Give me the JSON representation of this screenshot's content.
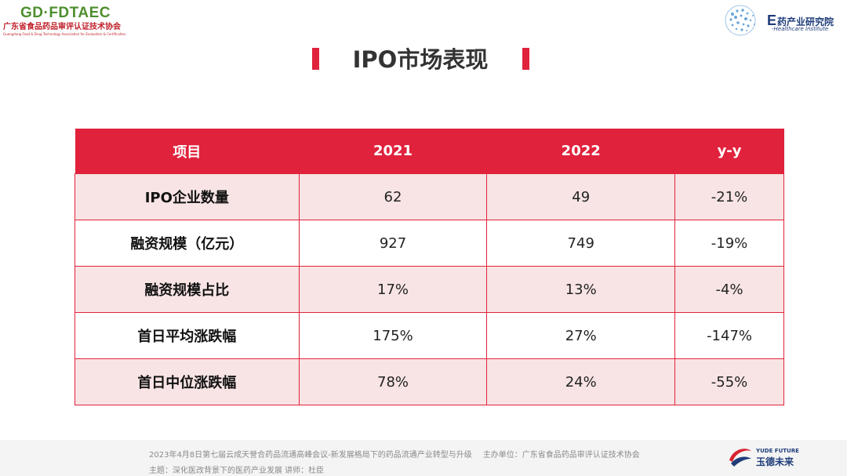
{
  "logos": {
    "left": {
      "main": "GD·FDTAEC",
      "cn": "广东省食品药品审评认证技术协会",
      "en": "Guangdong Food & Drug Technology Association for Evaluation & Certification"
    },
    "right": {
      "cn_prefix": "E",
      "cn": "药产业研究院",
      "en": "-Healthcare Institute"
    }
  },
  "title": "IPO市场表现",
  "table": {
    "headers": [
      "项目",
      "2021",
      "2022",
      "y-y"
    ],
    "rows": [
      [
        "IPO企业数量",
        "62",
        "49",
        "-21%"
      ],
      [
        "融资规模（亿元）",
        "927",
        "749",
        "-19%"
      ],
      [
        "融资规模占比",
        "17%",
        "13%",
        "-4%"
      ],
      [
        "首日平均涨跌幅",
        "175%",
        "27%",
        "-147%"
      ],
      [
        "首日中位涨跌幅",
        "78%",
        "24%",
        "-55%"
      ]
    ]
  },
  "footer": {
    "line1_left": "2023年4月8日第七届云成天誉合药品流通高峰会议-新发展格局下的药品流通产业转型与升级",
    "line1_right": "主办单位：广东省食品药品审评认证技术协会",
    "line2": "主题：深化医改背景下的医药产业发展 讲师：杜臣",
    "brand_en": "YUDE FUTURE",
    "brand_cn": "玉德未来"
  },
  "colors": {
    "accent": "#e0223c",
    "row_alt": "#f8e4e4",
    "brand_green": "#4e8e2e",
    "brand_blue": "#1f3d7a"
  }
}
